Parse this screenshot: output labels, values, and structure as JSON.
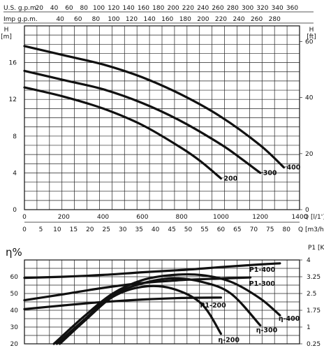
{
  "chart_data": [
    {
      "type": "line",
      "title": "",
      "top_axes": {
        "us_gpm": {
          "label": "U.S. g.p.m.",
          "ticks": [
            20,
            40,
            60,
            80,
            100,
            120,
            140,
            160,
            180,
            200,
            220,
            240,
            260,
            280,
            300,
            320,
            340,
            360
          ]
        },
        "imp_gpm": {
          "label": "Imp g.p.m.",
          "ticks": [
            40,
            60,
            80,
            100,
            120,
            140,
            160,
            180,
            200,
            220,
            240,
            260,
            280
          ]
        }
      },
      "bottom_axes": {
        "l_min": {
          "label": "Q  [l/1']",
          "ticks": [
            0,
            200,
            400,
            600,
            800,
            1000,
            1200,
            1400
          ],
          "range": [
            0,
            1400
          ]
        },
        "m3h": {
          "label": "Q  [m3/h]",
          "ticks": [
            0,
            5,
            10,
            15,
            20,
            25,
            30,
            35,
            40,
            45,
            50,
            55,
            60,
            65,
            70,
            75,
            80
          ]
        }
      },
      "y_left": {
        "label": "H",
        "unit": "[m]",
        "ticks": [
          0,
          4,
          8,
          12,
          16
        ],
        "range": [
          0,
          20
        ]
      },
      "y_right": {
        "label": "H",
        "unit": "[ft]",
        "ticks": [
          0,
          20,
          40,
          60
        ]
      },
      "grid": true,
      "series": [
        {
          "name": "400",
          "x": [
            0,
            200,
            400,
            600,
            800,
            1000,
            1200,
            1320
          ],
          "y": [
            17.8,
            16.8,
            15.8,
            14.4,
            12.5,
            10.1,
            7.0,
            4.6
          ]
        },
        {
          "name": "300",
          "x": [
            0,
            200,
            400,
            600,
            800,
            1000,
            1100,
            1200
          ],
          "y": [
            15.1,
            14.1,
            13.1,
            11.6,
            9.6,
            7.1,
            5.6,
            4.0
          ]
        },
        {
          "name": "200",
          "x": [
            0,
            200,
            400,
            600,
            800,
            900,
            1000
          ],
          "y": [
            13.3,
            12.3,
            11.0,
            9.2,
            6.7,
            5.2,
            3.4
          ]
        }
      ]
    },
    {
      "type": "line",
      "title": "",
      "y_left": {
        "label": "η%",
        "ticks": [
          20,
          30,
          40,
          50,
          60
        ],
        "range": [
          20,
          70
        ]
      },
      "y_right": {
        "label": "P1",
        "unit": "[Kw]",
        "ticks": [
          "0.25",
          "1",
          "1.75",
          "2.5",
          "3.25",
          "4"
        ],
        "range": [
          0.25,
          4
        ]
      },
      "x_range": [
        0,
        1400
      ],
      "grid": true,
      "series": [
        {
          "name": "P1-400",
          "x": [
            0,
            200,
            400,
            600,
            800,
            1000,
            1200,
            1300
          ],
          "y": [
            3.2,
            3.25,
            3.33,
            3.45,
            3.55,
            3.68,
            3.8,
            3.85
          ]
        },
        {
          "name": "P1-300",
          "x": [
            0,
            200,
            400,
            600,
            800,
            1000,
            1150
          ],
          "y": [
            2.2,
            2.47,
            2.75,
            2.97,
            3.1,
            3.17,
            3.22
          ]
        },
        {
          "name": "P1-200",
          "x": [
            0,
            200,
            400,
            600,
            800,
            1000
          ],
          "y": [
            1.8,
            1.97,
            2.12,
            2.23,
            2.3,
            2.32
          ]
        },
        {
          "name": "η-400",
          "x": [
            150,
            300,
            450,
            600,
            750,
            900,
            1050,
            1200,
            1300
          ],
          "y": [
            20,
            36,
            50,
            58,
            61,
            61,
            57,
            47,
            37
          ]
        },
        {
          "name": "η-300",
          "x": [
            165,
            300,
            450,
            600,
            750,
            900,
            1050,
            1200
          ],
          "y": [
            20,
            34,
            49,
            56,
            59,
            57,
            50,
            31
          ]
        },
        {
          "name": "η-200",
          "x": [
            180,
            300,
            450,
            600,
            750,
            900,
            1000
          ],
          "y": [
            20,
            33,
            48,
            54,
            53,
            44,
            26
          ]
        }
      ]
    }
  ]
}
